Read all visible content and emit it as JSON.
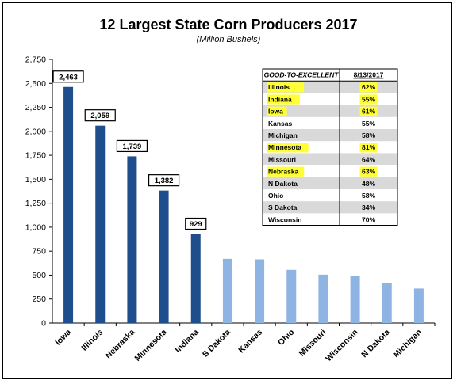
{
  "chart_data": {
    "type": "bar",
    "title": "12 Largest State Corn Producers 2017",
    "subtitle": "(Million Bushels)",
    "categories": [
      "Iowa",
      "Illinois",
      "Nebraska",
      "Minnesota",
      "Indiana",
      "S Dakota",
      "Kansas",
      "Ohio",
      "Missouri",
      "Wisconsin",
      "N Dakota",
      "Michigan"
    ],
    "values": [
      2463,
      2059,
      1739,
      1382,
      929,
      670,
      665,
      555,
      505,
      495,
      415,
      360
    ],
    "data_labels": [
      "2,463",
      "2,059",
      "1,739",
      "1,382",
      "929",
      null,
      null,
      null,
      null,
      null,
      null,
      null
    ],
    "ylim": [
      0,
      2750
    ],
    "yticks": [
      "0",
      "250",
      "500",
      "750",
      "1,000",
      "1,250",
      "1,500",
      "1,750",
      "2,000",
      "2,250",
      "2,500",
      "2,750"
    ],
    "grid": false,
    "colors": {
      "dark_bar": "#1f4e8c",
      "light_bar": "#8eb4e3",
      "highlight": "#ffff33",
      "row_shade": "#d9d9d9"
    }
  },
  "table": {
    "headers": [
      "GOOD-TO-EXCELLENT",
      "8/13/2017"
    ],
    "rows": [
      {
        "state": "Illinois",
        "value": "62%",
        "highlight": true
      },
      {
        "state": "Indiana",
        "value": "55%",
        "highlight": true
      },
      {
        "state": "Iowa",
        "value": "61%",
        "highlight": true
      },
      {
        "state": "Kansas",
        "value": "55%",
        "highlight": false
      },
      {
        "state": "Michigan",
        "value": "58%",
        "highlight": false
      },
      {
        "state": "Minnesota",
        "value": "81%",
        "highlight": true
      },
      {
        "state": "Missouri",
        "value": "64%",
        "highlight": false
      },
      {
        "state": "Nebraska",
        "value": "63%",
        "highlight": true
      },
      {
        "state": "N Dakota",
        "value": "48%",
        "highlight": false
      },
      {
        "state": "Ohio",
        "value": "58%",
        "highlight": false
      },
      {
        "state": "S Dakota",
        "value": "34%",
        "highlight": false
      },
      {
        "state": "Wisconsin",
        "value": "70%",
        "highlight": false
      }
    ]
  }
}
